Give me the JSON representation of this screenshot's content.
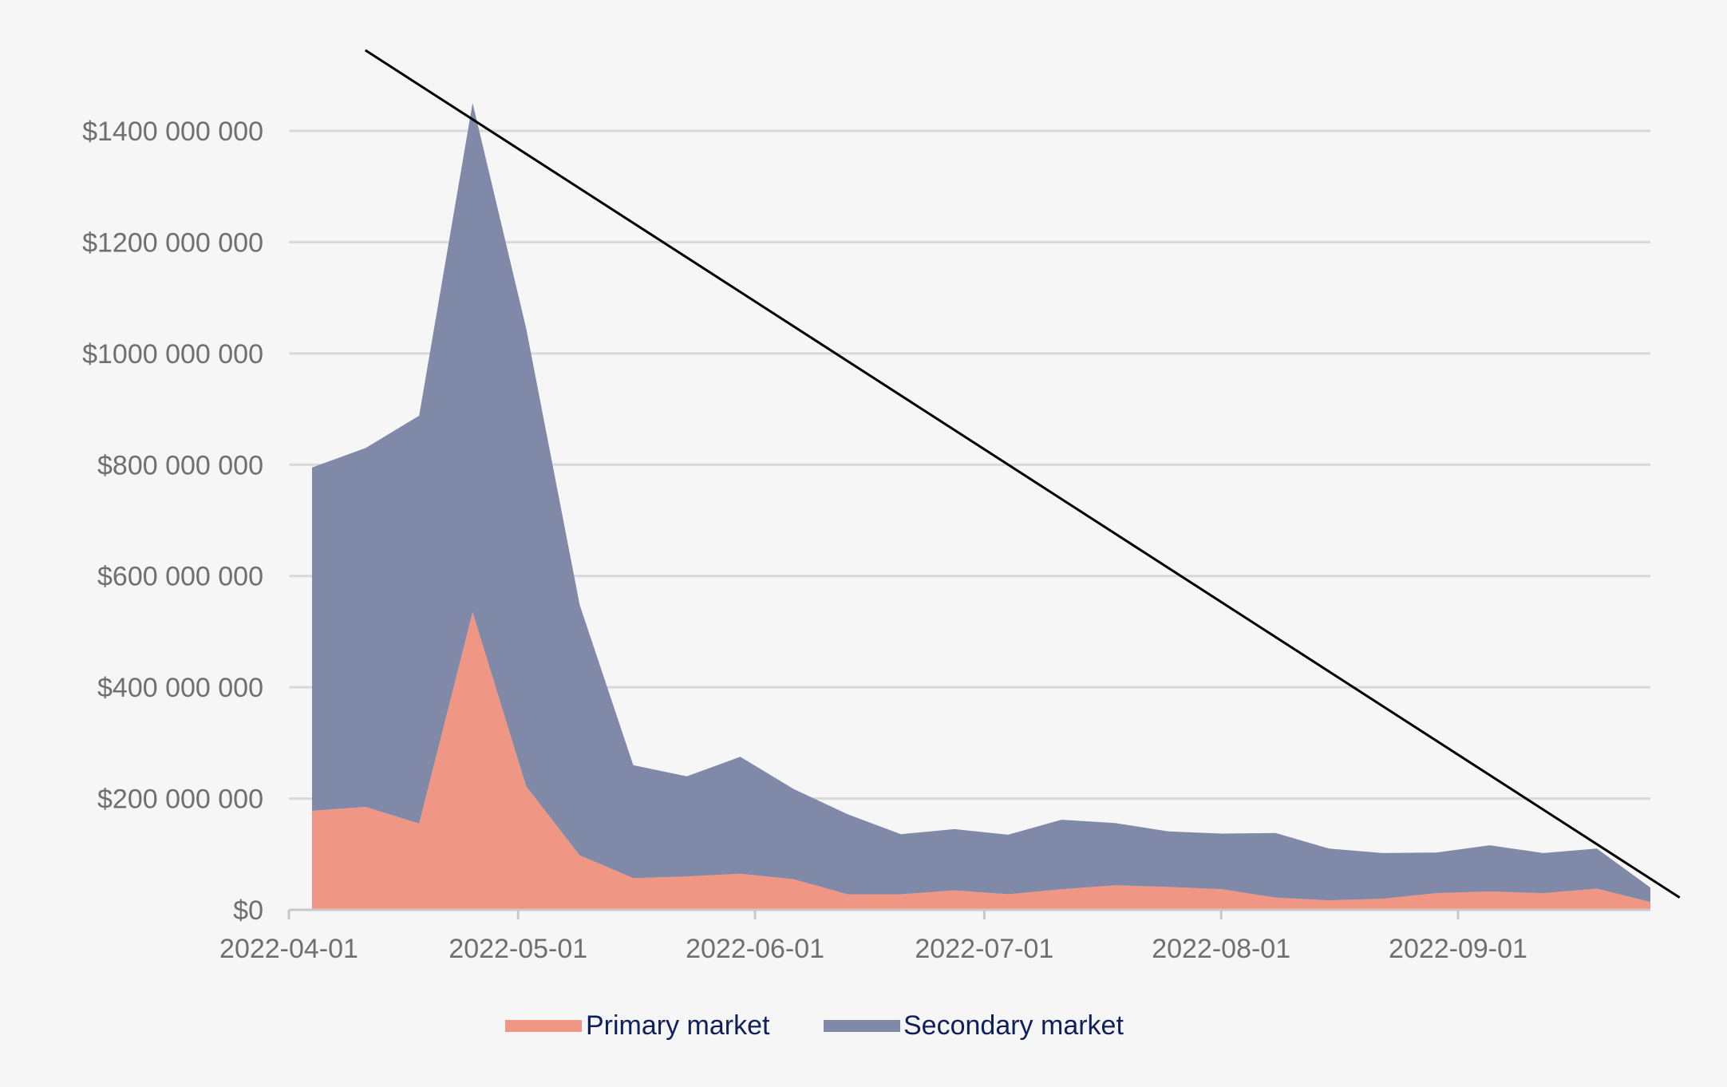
{
  "chart_data": {
    "type": "area",
    "stacked": true,
    "title": "",
    "xlabel": "",
    "ylabel": "",
    "x": [
      "2022-04-01",
      "2022-04-08",
      "2022-04-15",
      "2022-04-22",
      "2022-04-29",
      "2022-05-06",
      "2022-05-13",
      "2022-05-20",
      "2022-05-27",
      "2022-06-03",
      "2022-06-10",
      "2022-06-17",
      "2022-06-24",
      "2022-07-01",
      "2022-07-08",
      "2022-07-15",
      "2022-07-22",
      "2022-07-29",
      "2022-08-05",
      "2022-08-12",
      "2022-08-19",
      "2022-08-26",
      "2022-09-02",
      "2022-09-09",
      "2022-09-16",
      "2022-09-23"
    ],
    "series": [
      {
        "name": "Primary market",
        "color": "#ef9784",
        "values": [
          178000000,
          185000000,
          155000000,
          535000000,
          222000000,
          98000000,
          57000000,
          60000000,
          65000000,
          55000000,
          28000000,
          28000000,
          35000000,
          28000000,
          37000000,
          44000000,
          41000000,
          37000000,
          22000000,
          17000000,
          20000000,
          30000000,
          33000000,
          30000000,
          38000000,
          14000000
        ]
      },
      {
        "name": "Secondary market",
        "color": "#8089a7",
        "values": [
          617000000,
          645000000,
          733000000,
          915000000,
          823000000,
          450000000,
          203000000,
          180000000,
          210000000,
          162000000,
          144000000,
          108000000,
          110000000,
          107000000,
          125000000,
          112000000,
          100000000,
          100000000,
          116000000,
          93000000,
          82000000,
          73000000,
          83000000,
          72000000,
          72000000,
          26000000
        ]
      }
    ],
    "trendline": {
      "color": "#000000",
      "start": {
        "x": "2022-04-11",
        "y": 1545000000
      },
      "end": {
        "x": "2022-09-30",
        "y": 22000000
      }
    },
    "xticks": [
      "2022-04-01",
      "2022-05-01",
      "2022-06-01",
      "2022-07-01",
      "2022-08-01",
      "2022-09-01"
    ],
    "yticks": [
      0,
      200000000,
      400000000,
      600000000,
      800000000,
      1000000000,
      1200000000,
      1400000000
    ],
    "ytick_labels": [
      "$0",
      "$200 000 000",
      "$400 000 000",
      "$600 000 000",
      "$800 000 000",
      "$1000 000 000",
      "$1200 000 000",
      "$1400 000 000"
    ],
    "ylim": [
      0,
      1580000000
    ],
    "xlim": [
      "2022-04-01",
      "2022-09-28"
    ],
    "grid": "horizontal",
    "legend_position": "bottom-center",
    "colors": {
      "background": "#f6f6f6",
      "grid": "#d9d9d9",
      "axis": "#c8c8c8",
      "tick_text": "#6f6f6f",
      "legend_text": "#0f1f5a"
    }
  }
}
